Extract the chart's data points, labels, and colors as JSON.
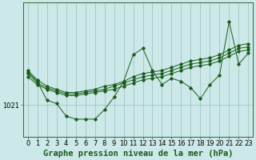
{
  "background_color": "#cce8e8",
  "plot_bg_color": "#cce8e8",
  "grid_color": "#9bbfbf",
  "line_color": "#1a5c1a",
  "xlabel": "Graphe pression niveau de la mer (hPa)",
  "xlabel_fontsize": 7.5,
  "tick_label_fontsize": 6,
  "y_label_value": 1021,
  "ylim": [
    1019.0,
    1027.5
  ],
  "xlim": [
    -0.5,
    23.5
  ],
  "x_ticks": [
    0,
    1,
    2,
    3,
    4,
    5,
    6,
    7,
    8,
    9,
    10,
    11,
    12,
    13,
    14,
    15,
    16,
    17,
    18,
    19,
    20,
    21,
    22,
    23
  ],
  "series": [
    [
      1023.2,
      1022.6,
      1022.2,
      1022.0,
      1021.8,
      1021.8,
      1021.9,
      1022.0,
      1022.2,
      1022.3,
      1022.5,
      1022.8,
      1023.0,
      1023.1,
      1023.2,
      1023.4,
      1023.6,
      1023.8,
      1023.9,
      1024.0,
      1024.2,
      1024.5,
      1024.8,
      1024.9
    ],
    [
      1023.0,
      1022.4,
      1022.1,
      1021.9,
      1021.7,
      1021.7,
      1021.8,
      1021.9,
      1022.0,
      1022.2,
      1022.4,
      1022.6,
      1022.8,
      1022.9,
      1023.0,
      1023.2,
      1023.4,
      1023.6,
      1023.7,
      1023.8,
      1024.0,
      1024.3,
      1024.6,
      1024.7
    ],
    [
      1022.8,
      1022.3,
      1022.0,
      1021.8,
      1021.6,
      1021.6,
      1021.7,
      1021.8,
      1021.9,
      1022.0,
      1022.2,
      1022.4,
      1022.6,
      1022.7,
      1022.8,
      1023.0,
      1023.2,
      1023.4,
      1023.5,
      1023.6,
      1023.8,
      1024.1,
      1024.4,
      1024.5
    ],
    [
      1023.1,
      1022.5,
      1021.3,
      1021.1,
      1020.3,
      1020.1,
      1020.1,
      1020.1,
      1020.7,
      1021.5,
      1022.5,
      1024.2,
      1024.6,
      1023.2,
      1022.3,
      1022.7,
      1022.5,
      1022.1,
      1021.4,
      1022.3,
      1022.9,
      1026.3,
      1023.6,
      1024.3
    ]
  ]
}
